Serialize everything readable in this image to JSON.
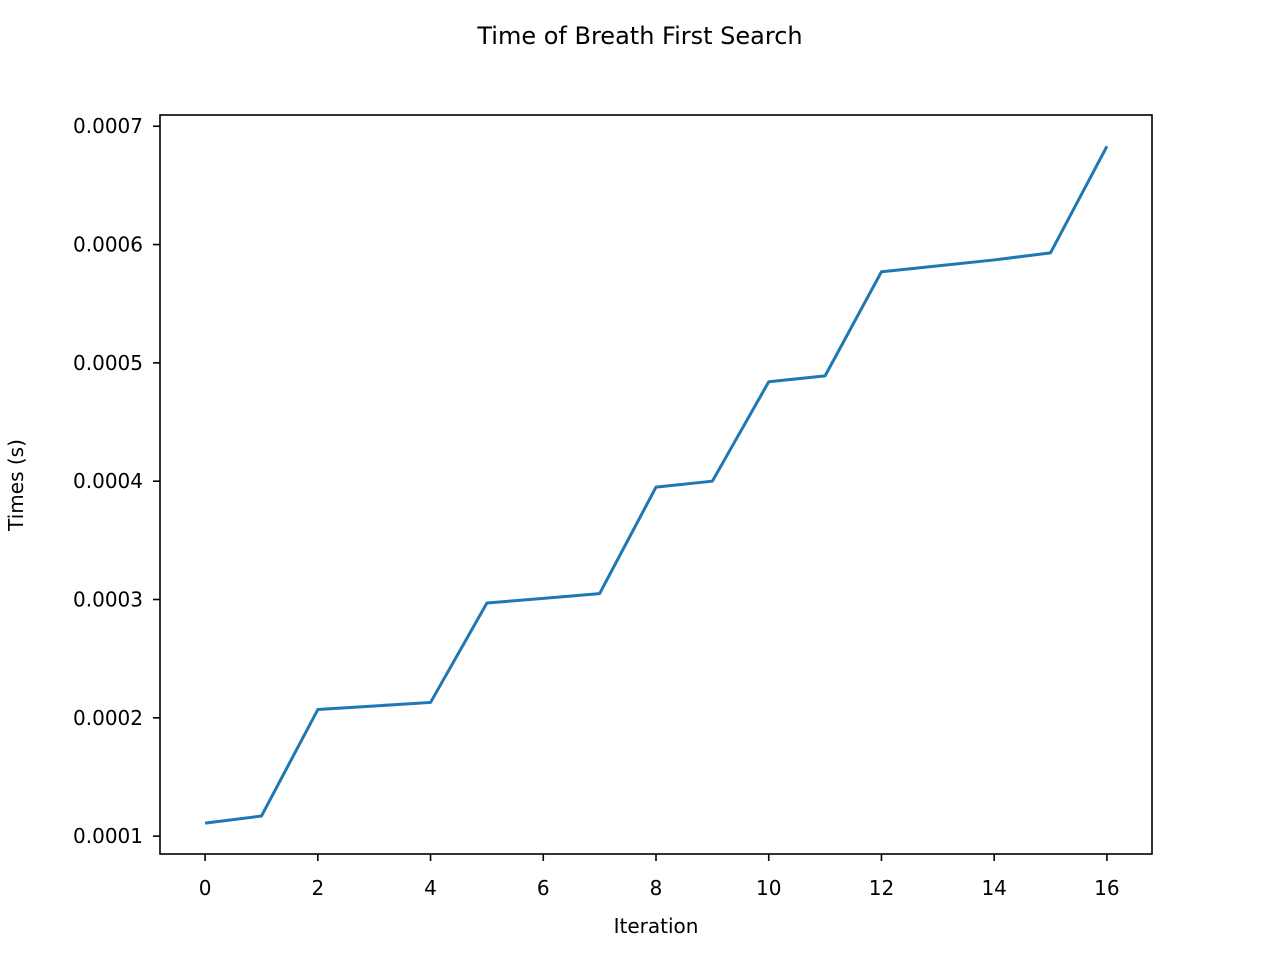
{
  "chart_data": {
    "type": "line",
    "title": "Time of Breath First Search",
    "xlabel": "Iteration",
    "ylabel": "Times (s)",
    "x": [
      0,
      1,
      2,
      3,
      4,
      5,
      6,
      7,
      8,
      9,
      10,
      11,
      12,
      13,
      14,
      15,
      16
    ],
    "series": [
      {
        "values": [
          0.000111,
          0.000117,
          0.000207,
          0.00021,
          0.000213,
          0.000297,
          0.000301,
          0.000305,
          0.000395,
          0.0004,
          0.000484,
          0.000489,
          0.000577,
          0.000582,
          0.000587,
          0.000593,
          0.000683
        ],
        "color": "#1f77b4"
      }
    ],
    "xlim": [
      -0.8,
      16.8
    ],
    "ylim": [
      8.49e-05,
      0.0007095
    ],
    "xticks": [
      0,
      2,
      4,
      6,
      8,
      10,
      12,
      14,
      16
    ],
    "xtick_labels": [
      "0",
      "2",
      "4",
      "6",
      "8",
      "10",
      "12",
      "14",
      "16"
    ],
    "yticks": [
      0.0001,
      0.0002,
      0.0003,
      0.0004,
      0.0005,
      0.0006,
      0.0007
    ],
    "ytick_labels": [
      "0.0001",
      "0.0002",
      "0.0003",
      "0.0004",
      "0.0005",
      "0.0006",
      "0.0007"
    ],
    "grid": false,
    "legend": "none"
  }
}
